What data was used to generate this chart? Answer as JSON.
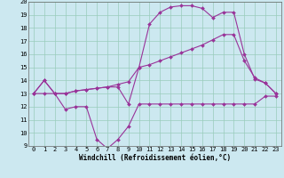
{
  "xlabel": "Windchill (Refroidissement éolien,°C)",
  "bg_color": "#cce8f0",
  "grid_color": "#99ccbb",
  "line_color": "#993399",
  "xlim": [
    -0.5,
    23.5
  ],
  "ylim": [
    9,
    20
  ],
  "xticks": [
    0,
    1,
    2,
    3,
    4,
    5,
    6,
    7,
    8,
    9,
    10,
    11,
    12,
    13,
    14,
    15,
    16,
    17,
    18,
    19,
    20,
    21,
    22,
    23
  ],
  "yticks": [
    9,
    10,
    11,
    12,
    13,
    14,
    15,
    16,
    17,
    18,
    19,
    20
  ],
  "line1_x": [
    0,
    1,
    2,
    3,
    4,
    5,
    6,
    7,
    8,
    9,
    10,
    11,
    12,
    13,
    14,
    15,
    16,
    17,
    18,
    19,
    20,
    21,
    22,
    23
  ],
  "line1_y": [
    13.0,
    14.0,
    13.0,
    11.8,
    12.0,
    12.0,
    9.5,
    8.8,
    9.5,
    10.5,
    12.2,
    12.2,
    12.2,
    12.2,
    12.2,
    12.2,
    12.2,
    12.2,
    12.2,
    12.2,
    12.2,
    12.2,
    12.8,
    12.8
  ],
  "line2_x": [
    0,
    1,
    2,
    3,
    4,
    5,
    6,
    7,
    8,
    9,
    10,
    11,
    12,
    13,
    14,
    15,
    16,
    17,
    18,
    19,
    20,
    21,
    22,
    23
  ],
  "line2_y": [
    13.0,
    13.0,
    13.0,
    13.0,
    13.2,
    13.3,
    13.4,
    13.5,
    13.7,
    13.9,
    15.0,
    15.2,
    15.5,
    15.8,
    16.1,
    16.4,
    16.7,
    17.1,
    17.5,
    17.5,
    15.5,
    14.2,
    13.8,
    13.0
  ],
  "line3_x": [
    0,
    1,
    2,
    3,
    4,
    5,
    6,
    7,
    8,
    9,
    10,
    11,
    12,
    13,
    14,
    15,
    16,
    17,
    18,
    19,
    20,
    21,
    22,
    23
  ],
  "line3_y": [
    13.0,
    14.0,
    13.0,
    13.0,
    13.2,
    13.3,
    13.4,
    13.5,
    13.5,
    12.2,
    15.0,
    18.3,
    19.2,
    19.6,
    19.7,
    19.7,
    19.5,
    18.8,
    19.2,
    19.2,
    16.0,
    14.1,
    13.8,
    13.0
  ],
  "markersize": 2.0,
  "linewidth": 0.8,
  "tick_fontsize": 5,
  "xlabel_fontsize": 5.5
}
